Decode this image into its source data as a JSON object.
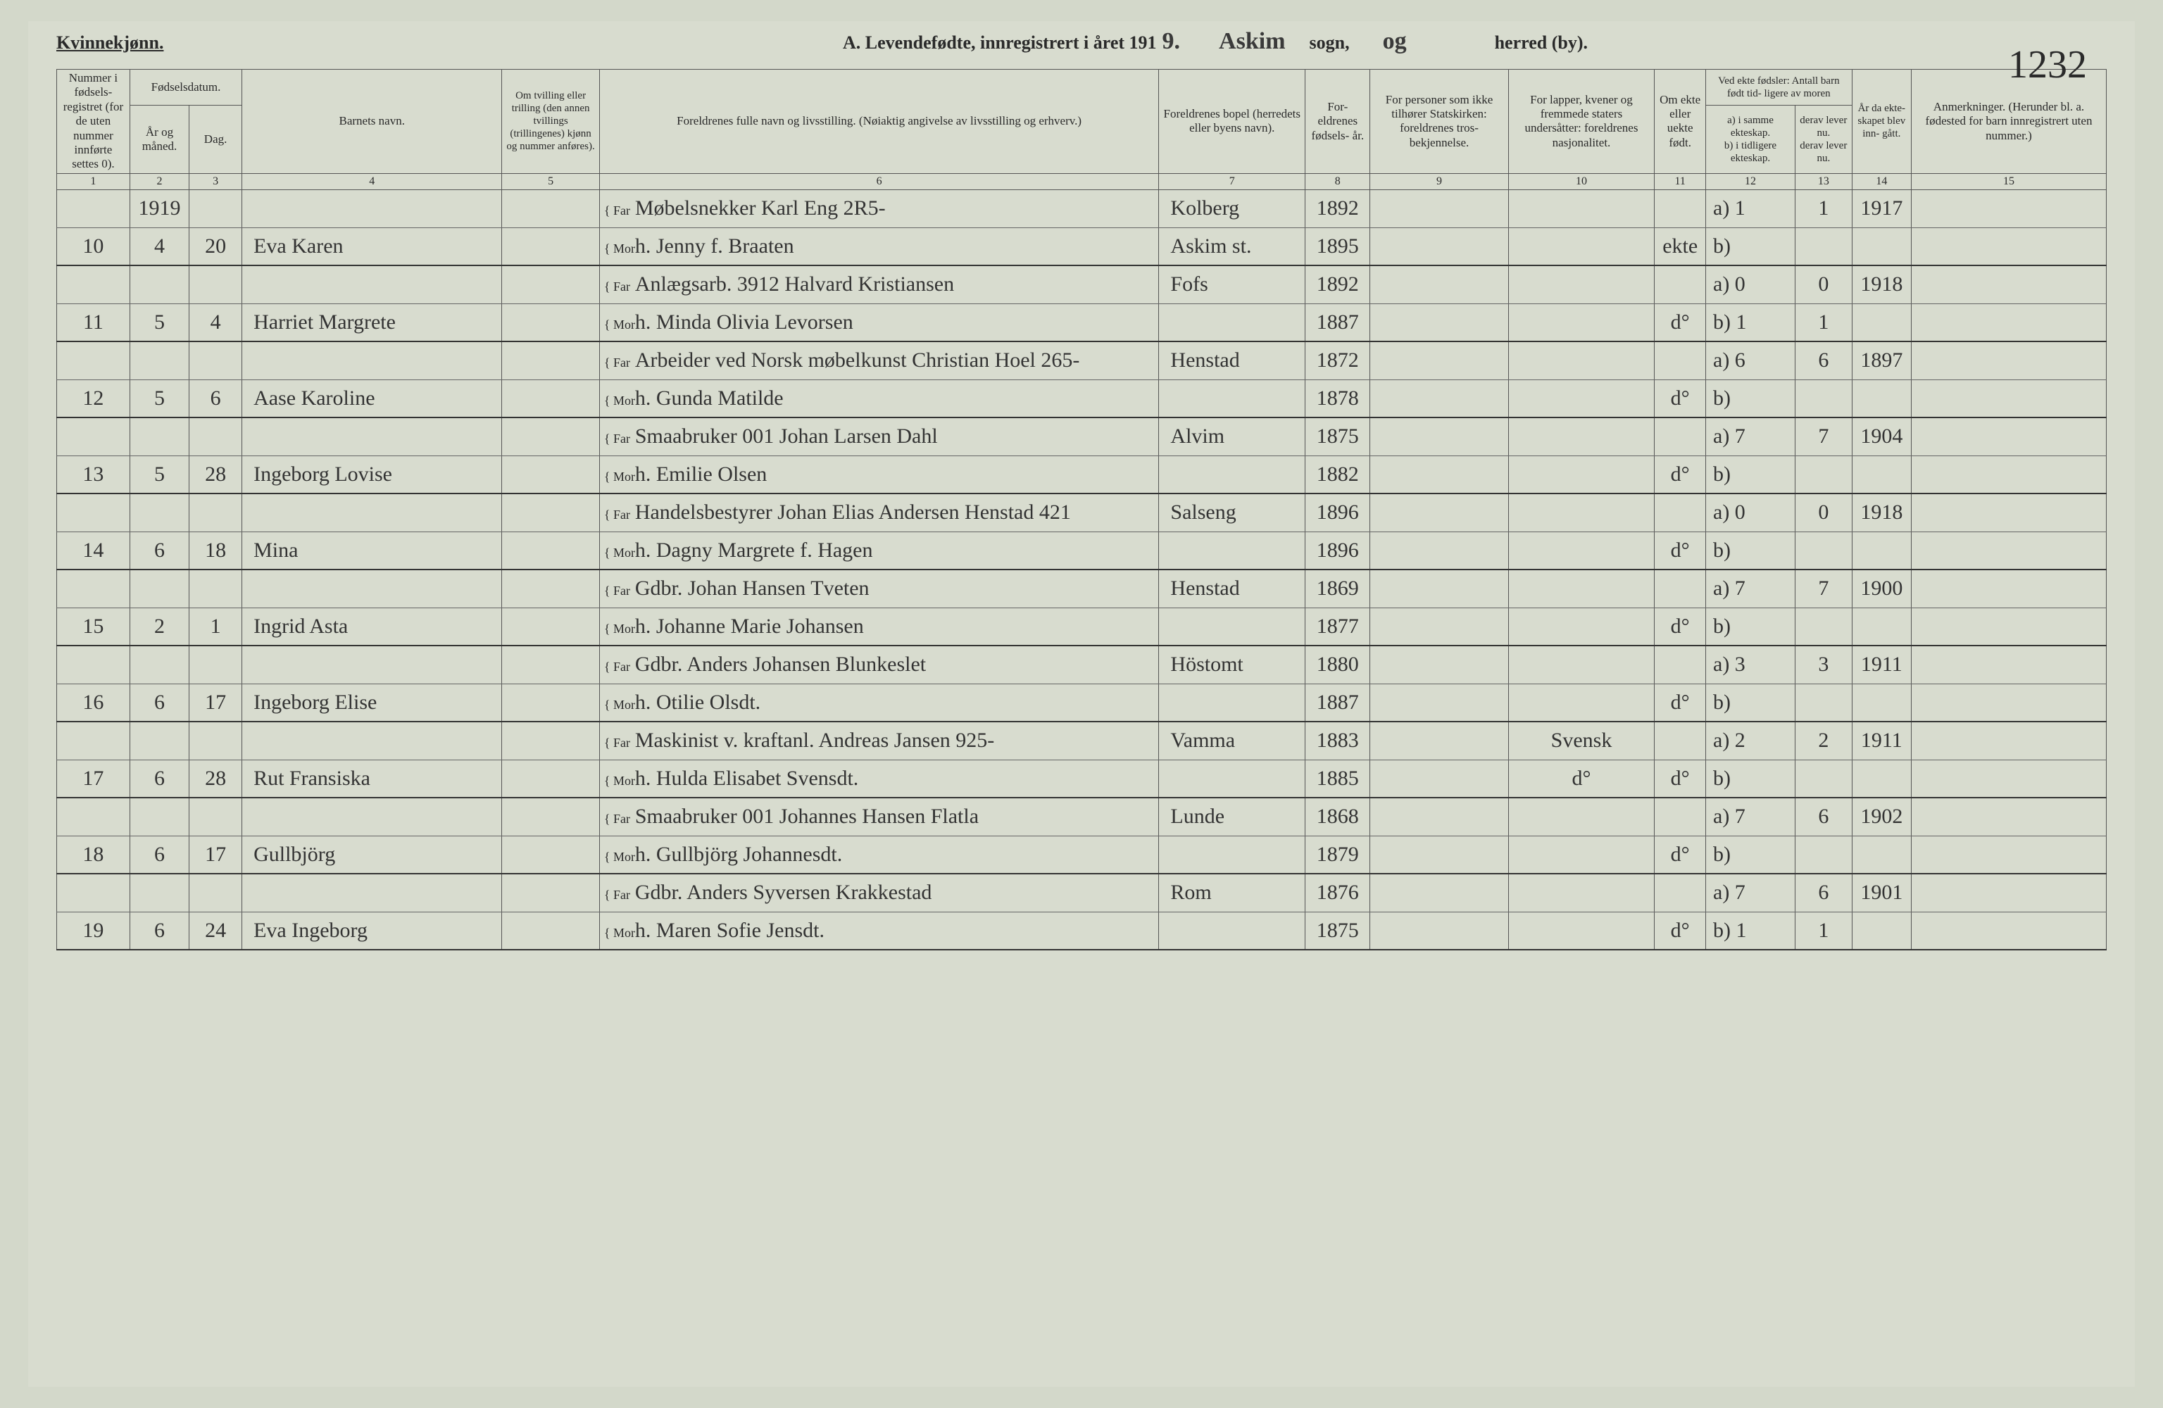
{
  "header": {
    "gender": "Kvinnekjønn.",
    "title_prefix": "A.  Levendefødte, innregistrert i året 191",
    "year_digit": "9.",
    "sogn_label": "sogn,",
    "herred_label": "herred (by).",
    "sogn_hw": "Askim",
    "herred_hw": "og",
    "page_num": "1232"
  },
  "columns": {
    "c1": "Nummer i fødsels- registret (for de uten nummer innførte settes 0).",
    "c2a": "Fødselsdatum.",
    "c2": "År og måned.",
    "c3": "Dag.",
    "c4": "Barnets navn.",
    "c5": "Om tvilling eller trilling (den annen tvillings (trillingenes) kjønn og nummer anføres).",
    "c6": "Foreldrenes fulle navn og livsstilling. (Nøiaktig angivelse av livsstilling og erhverv.)",
    "c7": "Foreldrenes bopel (herredets eller byens navn).",
    "c8": "For- eldrenes fødsels- år.",
    "c9": "For personer som ikke tilhører Statskirken: foreldrenes tros- bekjennelse.",
    "c10": "For lapper, kvener og fremmede staters undersåtter: foreldrenes nasjonalitet.",
    "c11": "Om ekte eller uekte født.",
    "c12h": "Ved ekte fødsler: Antall barn født tid- ligere av moren",
    "c12a": "a) i samme ekteskap.",
    "c12b": "b) i tidligere ekteskap.",
    "c13a": "derav lever nu.",
    "c13b": "derav lever nu.",
    "c14": "År da ekte- skapet blev inn- gått.",
    "c15": "Anmerkninger. (Herunder bl. a. fødested for barn innregistrert uten nummer.)"
  },
  "colnums": [
    "1",
    "2",
    "3",
    "4",
    "5",
    "6",
    "7",
    "8",
    "9",
    "10",
    "11",
    "12",
    "13",
    "14",
    "15"
  ],
  "rows": [
    {
      "n": "",
      "ym": "1919",
      "d": "",
      "name": "",
      "fm": "Far",
      "par": "Møbelsnekker Karl Eng   2R5-",
      "res": "Kolberg",
      "fy": "1892",
      "rel": "",
      "nat": "",
      "ekte": "",
      "a": "a)  1",
      "b": "1",
      "yr": "1917",
      "rem": ""
    },
    {
      "n": "10",
      "ym": "4",
      "d": "20",
      "name": "Eva Karen",
      "fm": "Mor",
      "par": "h. Jenny f. Braaten",
      "res": "Askim st.",
      "fy": "1895",
      "rel": "",
      "nat": "",
      "ekte": "ekte",
      "a": "b)",
      "b": "",
      "yr": "",
      "rem": ""
    },
    {
      "n": "",
      "ym": "",
      "d": "",
      "name": "",
      "fm": "Far",
      "par": "Anlægsarb.  3912   Halvard Kristiansen",
      "res": "Fofs",
      "fy": "1892",
      "rel": "",
      "nat": "",
      "ekte": "",
      "a": "a)  0",
      "b": "0",
      "yr": "1918",
      "rem": ""
    },
    {
      "n": "11",
      "ym": "5",
      "d": "4",
      "name": "Harriet Margrete",
      "fm": "Mor",
      "par": "h. Minda Olivia Levorsen",
      "res": "",
      "fy": "1887",
      "rel": "",
      "nat": "",
      "ekte": "d°",
      "a": "b)  1",
      "b": "1",
      "yr": "",
      "rem": ""
    },
    {
      "n": "",
      "ym": "",
      "d": "",
      "name": "",
      "fm": "Far",
      "par": "Arbeider ved Norsk møbelkunst  Christian Hoel 265-",
      "res": "Henstad",
      "fy": "1872",
      "rel": "",
      "nat": "",
      "ekte": "",
      "a": "a)  6",
      "b": "6",
      "yr": "1897",
      "rem": ""
    },
    {
      "n": "12",
      "ym": "5",
      "d": "6",
      "name": "Aase Karoline",
      "fm": "Mor",
      "par": "h. Gunda Matilde",
      "res": "",
      "fy": "1878",
      "rel": "",
      "nat": "",
      "ekte": "d°",
      "a": "b)",
      "b": "",
      "yr": "",
      "rem": ""
    },
    {
      "n": "",
      "ym": "",
      "d": "",
      "name": "",
      "fm": "Far",
      "par": "Smaabruker  001   Johan Larsen Dahl",
      "res": "Alvim",
      "fy": "1875",
      "rel": "",
      "nat": "",
      "ekte": "",
      "a": "a)  7",
      "b": "7",
      "yr": "1904",
      "rem": ""
    },
    {
      "n": "13",
      "ym": "5",
      "d": "28",
      "name": "Ingeborg Lovise",
      "fm": "Mor",
      "par": "h. Emilie Olsen",
      "res": "",
      "fy": "1882",
      "rel": "",
      "nat": "",
      "ekte": "d°",
      "a": "b)",
      "b": "",
      "yr": "",
      "rem": ""
    },
    {
      "n": "",
      "ym": "",
      "d": "",
      "name": "",
      "fm": "Far",
      "par": "Handelsbestyrer Johan Elias Andersen Henstad 421",
      "res": "Salseng",
      "fy": "1896",
      "rel": "",
      "nat": "",
      "ekte": "",
      "a": "a)  0",
      "b": "0",
      "yr": "1918",
      "rem": ""
    },
    {
      "n": "14",
      "ym": "6",
      "d": "18",
      "name": "Mina",
      "fm": "Mor",
      "par": "h. Dagny Margrete f. Hagen",
      "res": "",
      "fy": "1896",
      "rel": "",
      "nat": "",
      "ekte": "d°",
      "a": "b)",
      "b": "",
      "yr": "",
      "rem": ""
    },
    {
      "n": "",
      "ym": "",
      "d": "",
      "name": "",
      "fm": "Far",
      "par": "Gdbr.  Johan Hansen Tveten",
      "res": "Henstad",
      "fy": "1869",
      "rel": "",
      "nat": "",
      "ekte": "",
      "a": "a)  7",
      "b": "7",
      "yr": "1900",
      "rem": ""
    },
    {
      "n": "15",
      "ym": "2",
      "d": "1",
      "name": "Ingrid Asta",
      "fm": "Mor",
      "par": "h. Johanne Marie Johansen",
      "res": "",
      "fy": "1877",
      "rel": "",
      "nat": "",
      "ekte": "d°",
      "a": "b)",
      "b": "",
      "yr": "",
      "rem": ""
    },
    {
      "n": "",
      "ym": "",
      "d": "",
      "name": "",
      "fm": "Far",
      "par": "Gdbr.  Anders Johansen Blunkeslet",
      "res": "Höstomt",
      "fy": "1880",
      "rel": "",
      "nat": "",
      "ekte": "",
      "a": "a)  3",
      "b": "3",
      "yr": "1911",
      "rem": ""
    },
    {
      "n": "16",
      "ym": "6",
      "d": "17",
      "name": "Ingeborg Elise",
      "fm": "Mor",
      "par": "h. Otilie Olsdt.",
      "res": "",
      "fy": "1887",
      "rel": "",
      "nat": "",
      "ekte": "d°",
      "a": "b)",
      "b": "",
      "yr": "",
      "rem": ""
    },
    {
      "n": "",
      "ym": "",
      "d": "",
      "name": "",
      "fm": "Far",
      "par": "Maskinist v. kraftanl.  Andreas Jansen 925-",
      "res": "Vamma",
      "fy": "1883",
      "rel": "",
      "nat": "Svensk",
      "ekte": "",
      "a": "a)  2",
      "b": "2",
      "yr": "1911",
      "rem": ""
    },
    {
      "n": "17",
      "ym": "6",
      "d": "28",
      "name": "Rut Fransiska",
      "fm": "Mor",
      "par": "h. Hulda Elisabet Svensdt.",
      "res": "",
      "fy": "1885",
      "rel": "",
      "nat": "d°",
      "ekte": "d°",
      "a": "b)",
      "b": "",
      "yr": "",
      "rem": ""
    },
    {
      "n": "",
      "ym": "",
      "d": "",
      "name": "",
      "fm": "Far",
      "par": "Smaabruker  001   Johannes Hansen Flatla",
      "res": "Lunde",
      "fy": "1868",
      "rel": "",
      "nat": "",
      "ekte": "",
      "a": "a)  7",
      "b": "6",
      "yr": "1902",
      "rem": ""
    },
    {
      "n": "18",
      "ym": "6",
      "d": "17",
      "name": "Gullbjörg",
      "fm": "Mor",
      "par": "h. Gullbjörg Johannesdt.",
      "res": "",
      "fy": "1879",
      "rel": "",
      "nat": "",
      "ekte": "d°",
      "a": "b)",
      "b": "",
      "yr": "",
      "rem": ""
    },
    {
      "n": "",
      "ym": "",
      "d": "",
      "name": "",
      "fm": "Far",
      "par": "Gdbr. Anders Syversen Krakkestad",
      "res": "Rom",
      "fy": "1876",
      "rel": "",
      "nat": "",
      "ekte": "",
      "a": "a)  7",
      "b": "6",
      "yr": "1901",
      "rem": ""
    },
    {
      "n": "19",
      "ym": "6",
      "d": "24",
      "name": "Eva Ingeborg",
      "fm": "Mor",
      "par": "h. Maren Sofie Jensdt.",
      "res": "",
      "fy": "1875",
      "rel": "",
      "nat": "",
      "ekte": "d°",
      "a": "b)  1",
      "b": "1",
      "yr": "",
      "rem": ""
    }
  ]
}
